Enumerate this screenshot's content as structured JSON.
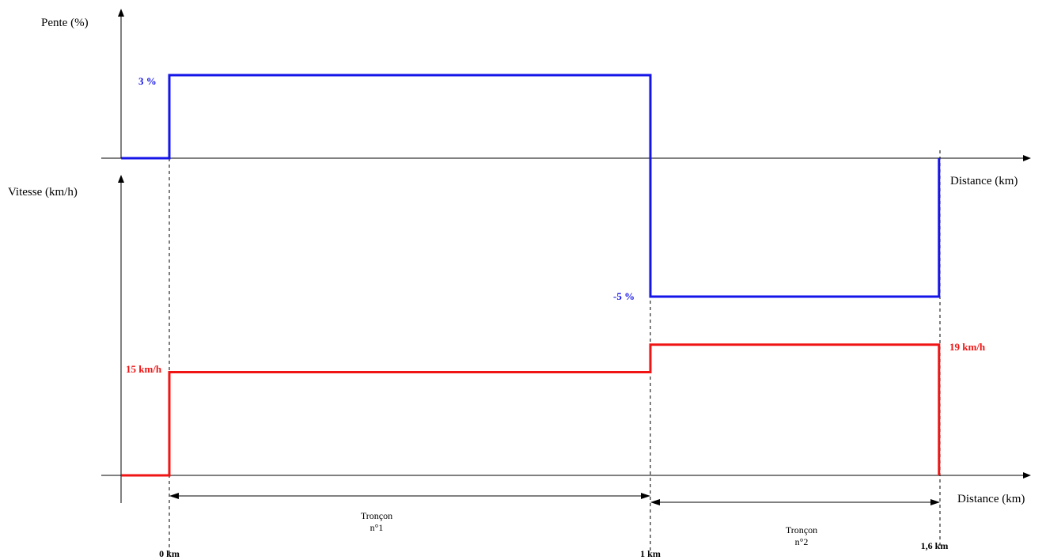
{
  "colors": {
    "slope": "#1515e8",
    "speed": "#f01414",
    "axis": "#000000"
  },
  "chart_data": [
    {
      "type": "line",
      "step": true,
      "ylabel": "Pente (%)",
      "xlabel": "Distance (km)",
      "series": [
        {
          "color": "#1515e8",
          "points": [
            [
              -0.1,
              0
            ],
            [
              0,
              0
            ],
            [
              0,
              3
            ],
            [
              1,
              3
            ],
            [
              1,
              -5
            ],
            [
              1.6,
              -5
            ],
            [
              1.6,
              0
            ]
          ]
        }
      ],
      "annotations": [
        "3 %",
        "-5 %"
      ]
    },
    {
      "type": "line",
      "step": true,
      "ylabel": "Vitesse (km/h)",
      "xlabel": "Distance (km)",
      "series": [
        {
          "color": "#f01414",
          "points": [
            [
              -0.1,
              0
            ],
            [
              0,
              0
            ],
            [
              0,
              15
            ],
            [
              1,
              15
            ],
            [
              1,
              19
            ],
            [
              1.6,
              19
            ],
            [
              1.6,
              0
            ]
          ]
        }
      ],
      "annotations": [
        "15 km/h",
        "19 km/h"
      ],
      "x_ticks": [
        {
          "x": 0,
          "label": "0 km"
        },
        {
          "x": 1,
          "label": "1 km"
        },
        {
          "x": 1.6,
          "label": "1,6 km"
        }
      ],
      "segments": [
        {
          "from": 0,
          "to": 1,
          "label": [
            "Tronçon",
            "n°1"
          ]
        },
        {
          "from": 1,
          "to": 1.6,
          "label": [
            "Tronçon",
            "n°2"
          ]
        }
      ]
    }
  ]
}
